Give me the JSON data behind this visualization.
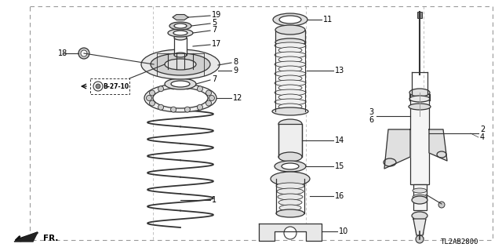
{
  "bg_color": "#ffffff",
  "line_color": "#333333",
  "text_color": "#000000",
  "diagram_code": "TL2AB2800",
  "border_dash": [
    4,
    3
  ],
  "fig_w": 6.4,
  "fig_h": 3.2,
  "dpi": 100
}
